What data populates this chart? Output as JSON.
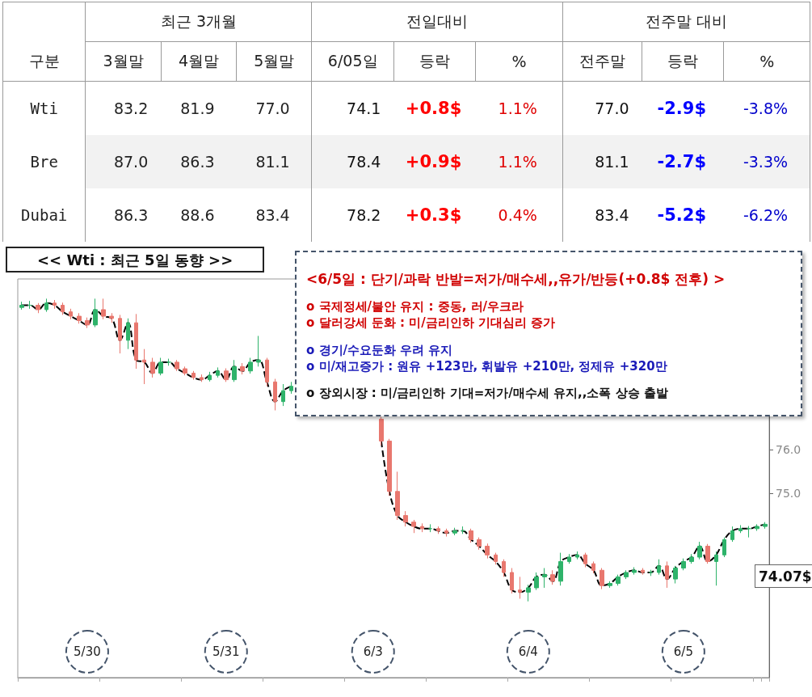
{
  "chart_data": [
    {
      "type": "other",
      "annotations": [
        "구분",
        "최근 3개월",
        "전일대비",
        "전주말 대비"
      ],
      "categories": [
        "3월말",
        "4월말",
        "5월말",
        "6/05일",
        "등락",
        "%",
        "전주말",
        "등락",
        "%"
      ],
      "y_categories": [
        "Wti",
        "Bre",
        "Dubai"
      ],
      "cell_labels": [
        [
          "83.2",
          "81.9",
          "77.0",
          "74.1",
          "+0.8$",
          "1.1%",
          "77.0",
          "-2.9$",
          "-3.8%"
        ],
        [
          "87.0",
          "86.3",
          "81.1",
          "78.4",
          "+0.9$",
          "1.1%",
          "81.1",
          "-2.7$",
          "-3.3%"
        ],
        [
          "86.3",
          "88.6",
          "83.4",
          "78.2",
          "+0.3$",
          "0.4%",
          "83.4",
          "-5.2$",
          "-6.2%"
        ]
      ],
      "colors": [
        "#222222",
        "#222222",
        "#222222",
        "#111111",
        "#ff0000",
        "#e00000",
        "#111111",
        "#0000ff",
        "#0000cc"
      ]
    },
    {
      "type": "candlestick",
      "title": "<< Wti : 최근 5일 동향 >>",
      "annotations": [
        "<6/5일 : 단기/과락 반발=저가/매수세,,유가/반등(+0.8$ 전후) >",
        "o 국제정세/불안 유지 : 중동, 러/우크라",
        "o 달러강세 둔화 : 미/금리인하 기대심리 증가",
        "o 경기/수요둔화 우려 유지",
        "o 미/재고증가 : 원유 +123만, 휘발유 +210만, 정제유 +320만",
        "o 장외시장 : 미/금리인하 기대=저가/매수세 유지,,소폭 상승 출발",
        "74.07$"
      ],
      "categories": [
        null,
        null,
        null,
        null,
        null,
        null,
        null,
        null,
        "5/30",
        null,
        null,
        null,
        null,
        null,
        null,
        null,
        null,
        null,
        null,
        null,
        null,
        null,
        null,
        null,
        null,
        "5/31",
        null,
        null,
        null,
        null,
        null,
        null,
        null,
        null,
        null,
        null,
        null,
        null,
        null,
        null,
        null,
        null,
        null,
        "6/3",
        null,
        null,
        null,
        null,
        null,
        null,
        null,
        null,
        null,
        null,
        null,
        null,
        null,
        null,
        null,
        null,
        null,
        null,
        "6/4",
        null,
        null,
        null,
        null,
        null,
        null,
        null,
        null,
        null,
        null,
        null,
        null,
        null,
        null,
        null,
        null,
        null,
        null,
        "6/5",
        null,
        null,
        null,
        null,
        null,
        null,
        null,
        null,
        null,
        null
      ],
      "ohlc": [
        [
          79.25,
          79.38,
          79.2,
          79.3
        ],
        [
          79.3,
          79.4,
          79.22,
          79.3
        ],
        [
          79.3,
          79.35,
          79.12,
          79.2
        ],
        [
          79.2,
          79.45,
          79.15,
          79.35
        ],
        [
          79.35,
          79.42,
          79.22,
          79.3
        ],
        [
          79.3,
          79.36,
          79.08,
          79.15
        ],
        [
          79.15,
          79.22,
          78.98,
          79.05
        ],
        [
          79.05,
          79.12,
          78.88,
          78.95
        ],
        [
          78.95,
          79.02,
          78.78,
          78.85
        ],
        [
          78.85,
          79.45,
          78.8,
          79.2
        ],
        [
          79.2,
          79.45,
          78.98,
          79.05
        ],
        [
          79.05,
          79.12,
          78.9,
          79.0
        ],
        [
          79.0,
          79.08,
          78.2,
          78.5
        ],
        [
          78.5,
          79.0,
          78.3,
          78.9
        ],
        [
          78.9,
          79.1,
          77.85,
          78.05
        ],
        [
          78.05,
          78.3,
          77.5,
          78.0
        ],
        [
          78.0,
          78.1,
          77.65,
          77.75
        ],
        [
          77.75,
          78.1,
          77.7,
          78.0
        ],
        [
          78.0,
          78.08,
          77.92,
          78.0
        ],
        [
          78.0,
          78.05,
          77.8,
          77.85
        ],
        [
          77.85,
          77.9,
          77.7,
          77.75
        ],
        [
          77.75,
          77.8,
          77.6,
          77.65
        ],
        [
          77.65,
          77.72,
          77.55,
          77.6
        ],
        [
          77.6,
          77.78,
          77.56,
          77.7
        ],
        [
          77.7,
          77.88,
          77.65,
          77.8
        ],
        [
          77.8,
          77.86,
          77.55,
          77.6
        ],
        [
          77.6,
          78.05,
          77.55,
          77.9
        ],
        [
          77.9,
          77.98,
          77.72,
          77.8
        ],
        [
          77.8,
          78.1,
          77.74,
          78.0
        ],
        [
          78.0,
          78.6,
          77.9,
          78.05
        ],
        [
          78.05,
          78.1,
          77.45,
          77.55
        ],
        [
          77.55,
          77.62,
          76.9,
          77.1
        ],
        [
          77.1,
          77.5,
          77.0,
          77.35
        ],
        [
          77.35,
          77.55,
          77.28,
          77.45
        ],
        null,
        null,
        null,
        null,
        null,
        null,
        null,
        null,
        null,
        null,
        [
          76.7,
          76.75,
          76.1,
          76.2
        ],
        [
          76.2,
          76.25,
          74.95,
          75.05
        ],
        [
          75.05,
          75.5,
          74.4,
          74.5
        ],
        [
          74.5,
          74.6,
          74.25,
          74.35
        ],
        [
          74.35,
          74.4,
          74.1,
          74.25
        ],
        [
          74.25,
          74.32,
          74.12,
          74.2
        ],
        [
          74.2,
          74.3,
          74.12,
          74.2
        ],
        [
          74.2,
          74.25,
          74.08,
          74.15
        ],
        [
          74.15,
          74.2,
          74.02,
          74.1
        ],
        [
          74.1,
          74.22,
          74.05,
          74.15
        ],
        [
          74.15,
          74.25,
          74.08,
          74.15
        ],
        [
          74.15,
          74.2,
          73.88,
          73.95
        ],
        [
          73.95,
          74.0,
          73.72,
          73.8
        ],
        [
          73.8,
          73.86,
          73.52,
          73.6
        ],
        [
          73.6,
          73.65,
          73.38,
          73.45
        ],
        [
          73.45,
          73.5,
          73.1,
          73.2
        ],
        [
          73.2,
          73.3,
          72.72,
          72.8
        ],
        [
          72.8,
          73.1,
          72.6,
          72.75
        ],
        [
          72.75,
          72.92,
          72.54,
          72.85
        ],
        [
          72.85,
          73.2,
          72.8,
          73.1
        ],
        [
          73.1,
          73.3,
          72.85,
          73.15
        ],
        [
          73.15,
          73.25,
          72.92,
          73.0
        ],
        [
          73.0,
          73.65,
          72.9,
          73.45
        ],
        [
          73.45,
          73.62,
          73.4,
          73.55
        ],
        [
          73.55,
          73.68,
          73.5,
          73.6
        ],
        [
          73.6,
          73.65,
          73.32,
          73.4
        ],
        [
          73.4,
          73.45,
          73.18,
          73.25
        ],
        [
          73.25,
          73.3,
          72.82,
          72.9
        ],
        [
          72.9,
          73.0,
          72.85,
          72.95
        ],
        [
          72.95,
          73.15,
          72.9,
          73.1
        ],
        [
          73.1,
          73.25,
          73.05,
          73.2
        ],
        [
          73.2,
          73.32,
          73.15,
          73.25
        ],
        [
          73.25,
          73.3,
          73.15,
          73.2
        ],
        [
          73.2,
          73.26,
          73.12,
          73.2
        ],
        [
          73.2,
          73.5,
          73.15,
          73.35
        ],
        [
          73.35,
          73.45,
          72.85,
          73.05
        ],
        [
          73.05,
          73.35,
          72.95,
          73.3
        ],
        [
          73.3,
          73.52,
          73.25,
          73.45
        ],
        [
          73.45,
          73.62,
          73.4,
          73.55
        ],
        [
          73.55,
          73.9,
          73.5,
          73.8
        ],
        [
          73.8,
          73.85,
          73.4,
          73.45
        ],
        [
          73.45,
          73.68,
          72.9,
          73.6
        ],
        [
          73.6,
          74.0,
          73.55,
          73.95
        ],
        [
          73.95,
          74.25,
          73.9,
          74.15
        ],
        [
          74.15,
          74.28,
          74.1,
          74.2
        ],
        [
          74.2,
          74.26,
          74.0,
          74.2
        ],
        [
          74.2,
          74.3,
          74.15,
          74.25
        ],
        [
          74.25,
          74.35,
          74.2,
          74.3
        ]
      ],
      "colors": [
        "#2eb36a",
        "#2eb36a",
        "#e8776e",
        "#2eb36a",
        "#e8776e",
        "#e8776e",
        "#e8776e",
        "#e8776e",
        "#e8776e",
        "#2eb36a",
        "#e8776e",
        "#e8776e",
        "#e8776e",
        "#2eb36a",
        "#e8776e",
        "#e8776e",
        "#e8776e",
        "#2eb36a",
        "#2eb36a",
        "#e8776e",
        "#e8776e",
        "#e8776e",
        "#e8776e",
        "#2eb36a",
        "#2eb36a",
        "#e8776e",
        "#2eb36a",
        "#e8776e",
        "#2eb36a",
        "#2eb36a",
        "#e8776e",
        "#e8776e",
        "#2eb36a",
        "#2eb36a",
        null,
        null,
        null,
        null,
        null,
        null,
        null,
        null,
        null,
        null,
        "#e8776e",
        "#e8776e",
        "#e8776e",
        "#e8776e",
        "#e8776e",
        "#e8776e",
        "#2eb36a",
        "#e8776e",
        "#e8776e",
        "#2eb36a",
        "#2eb36a",
        "#e8776e",
        "#e8776e",
        "#e8776e",
        "#e8776e",
        "#e8776e",
        "#e8776e",
        "#e8776e",
        "#2eb36a",
        "#2eb36a",
        "#2eb36a",
        "#e8776e",
        "#2eb36a",
        "#2eb36a",
        "#2eb36a",
        "#e8776e",
        "#e8776e",
        "#e8776e",
        "#2eb36a",
        "#2eb36a",
        "#2eb36a",
        "#2eb36a",
        "#e8776e",
        "#2eb36a",
        "#2eb36a",
        "#e8776e",
        "#2eb36a",
        "#2eb36a",
        "#2eb36a",
        "#2eb36a",
        "#e8776e",
        "#2eb36a",
        "#2eb36a",
        "#2eb36a",
        "#2eb36a",
        "#2eb36a",
        "#2eb36a",
        "#2eb36a"
      ],
      "series": [
        {
          "type": "line",
          "color": "#000000",
          "line_style": "dashed",
          "values": [
            79.3,
            79.3,
            79.2,
            79.35,
            79.3,
            79.15,
            79.05,
            78.95,
            78.85,
            79.2,
            79.05,
            79.0,
            78.5,
            78.9,
            78.05,
            78.0,
            77.75,
            78.0,
            78.0,
            77.85,
            77.75,
            77.65,
            77.6,
            77.7,
            77.8,
            77.6,
            77.9,
            77.8,
            78.0,
            78.05,
            77.55,
            77.1,
            77.35,
            77.45,
            null,
            null,
            null,
            null,
            null,
            null,
            null,
            null,
            null,
            null,
            76.2,
            75.05,
            74.5,
            74.35,
            74.25,
            74.2,
            74.2,
            74.15,
            74.1,
            74.15,
            74.15,
            73.95,
            73.8,
            73.6,
            73.45,
            73.2,
            72.8,
            72.75,
            72.85,
            73.1,
            73.15,
            73.0,
            73.45,
            73.55,
            73.6,
            73.4,
            73.25,
            72.9,
            72.95,
            73.1,
            73.2,
            73.25,
            73.2,
            73.2,
            73.35,
            73.05,
            73.3,
            73.45,
            73.55,
            73.8,
            73.45,
            73.6,
            73.95,
            74.15,
            74.2,
            74.2,
            74.25,
            74.3
          ]
        }
      ],
      "ylim": [
        70.8,
        79.9
      ],
      "yticks": [
        {
          "value": 75,
          "label": "75.0"
        },
        {
          "value": 76,
          "label": "76.0"
        }
      ],
      "grid": false,
      "marker": "none"
    }
  ]
}
